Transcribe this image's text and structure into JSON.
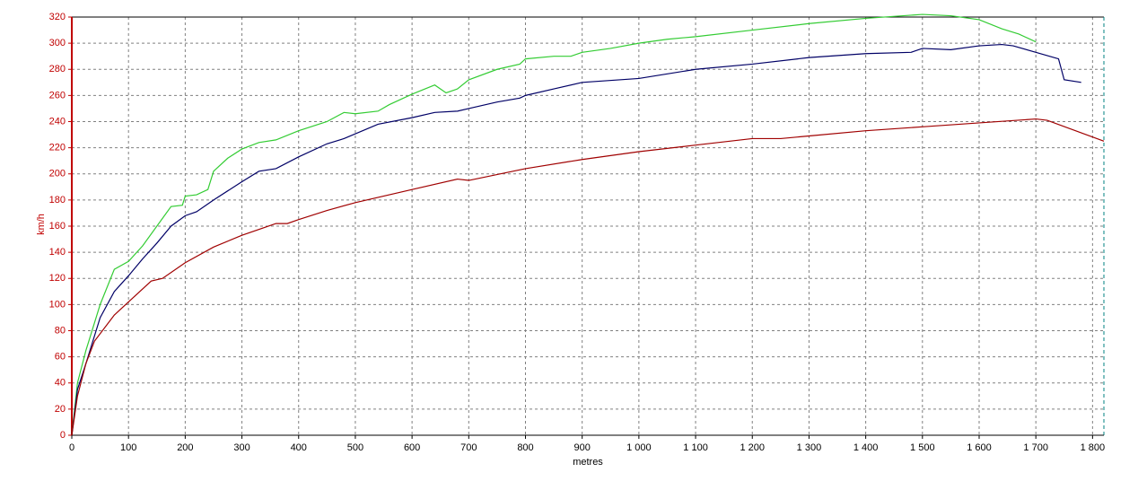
{
  "chart_data": {
    "type": "line",
    "x_label": "metres",
    "y_label": "km/h",
    "xlim": [
      0,
      1820
    ],
    "ylim": [
      0,
      320
    ],
    "xticks": [
      0,
      100,
      200,
      300,
      400,
      500,
      600,
      700,
      800,
      900,
      {
        "value": 1000,
        "label": "1 000"
      },
      {
        "value": 1100,
        "label": "1 100"
      },
      {
        "value": 1200,
        "label": "1 200"
      },
      {
        "value": 1300,
        "label": "1 300"
      },
      {
        "value": 1400,
        "label": "1 400"
      },
      {
        "value": 1500,
        "label": "1 500"
      },
      {
        "value": 1600,
        "label": "1 600"
      },
      {
        "value": 1700,
        "label": "1 700"
      },
      {
        "value": 1800,
        "label": "1 800"
      }
    ],
    "yticks": [
      0,
      20,
      40,
      60,
      80,
      100,
      120,
      140,
      160,
      180,
      200,
      220,
      240,
      260,
      280,
      300,
      320
    ],
    "grid": true,
    "series": [
      {
        "color": "#33cc33",
        "x": [
          0,
          10,
          25,
          50,
          75,
          100,
          125,
          150,
          175,
          195,
          200,
          220,
          240,
          250,
          275,
          300,
          330,
          360,
          400,
          450,
          480,
          500,
          540,
          560,
          600,
          640,
          660,
          680,
          700,
          750,
          790,
          800,
          850,
          880,
          900,
          950,
          1000,
          1050,
          1100,
          1200,
          1300,
          1400,
          1500,
          1550,
          1600,
          1640,
          1670,
          1700
        ],
        "values": [
          0,
          40,
          65,
          100,
          127,
          133,
          145,
          160,
          175,
          176,
          183,
          184,
          188,
          202,
          212,
          219,
          224,
          226,
          233,
          240,
          247,
          246,
          248,
          253,
          261,
          268,
          262,
          265,
          272,
          280,
          284,
          288,
          290,
          290,
          293,
          296,
          300,
          303,
          305,
          310,
          315,
          319,
          322,
          321,
          318,
          311,
          307,
          301
        ]
      },
      {
        "color": "#000066",
        "x": [
          0,
          10,
          25,
          50,
          75,
          100,
          125,
          150,
          175,
          200,
          220,
          250,
          300,
          330,
          360,
          400,
          450,
          480,
          540,
          600,
          640,
          680,
          700,
          750,
          790,
          800,
          850,
          900,
          1000,
          1100,
          1200,
          1300,
          1400,
          1480,
          1500,
          1550,
          1600,
          1640,
          1660,
          1700,
          1740,
          1750,
          1780
        ],
        "values": [
          0,
          35,
          55,
          90,
          110,
          122,
          135,
          147,
          160,
          168,
          171,
          180,
          194,
          202,
          204,
          213,
          223,
          227,
          238,
          243,
          247,
          248,
          250,
          255,
          258,
          260,
          265,
          270,
          273,
          280,
          284,
          289,
          292,
          293,
          296,
          295,
          298,
          299,
          298,
          293,
          288,
          272,
          270
        ]
      },
      {
        "color": "#a00000",
        "x": [
          0,
          10,
          25,
          40,
          75,
          100,
          140,
          160,
          200,
          250,
          300,
          360,
          380,
          400,
          450,
          500,
          600,
          680,
          700,
          800,
          900,
          1000,
          1100,
          1200,
          1250,
          1300,
          1400,
          1500,
          1600,
          1700,
          1720,
          1820
        ],
        "values": [
          0,
          30,
          55,
          72,
          92,
          102,
          118,
          120,
          132,
          144,
          153,
          162,
          162,
          165,
          172,
          178,
          188,
          196,
          195,
          204,
          211,
          217,
          222,
          227,
          227,
          229,
          233,
          236,
          239,
          242,
          241,
          225
        ]
      }
    ]
  }
}
